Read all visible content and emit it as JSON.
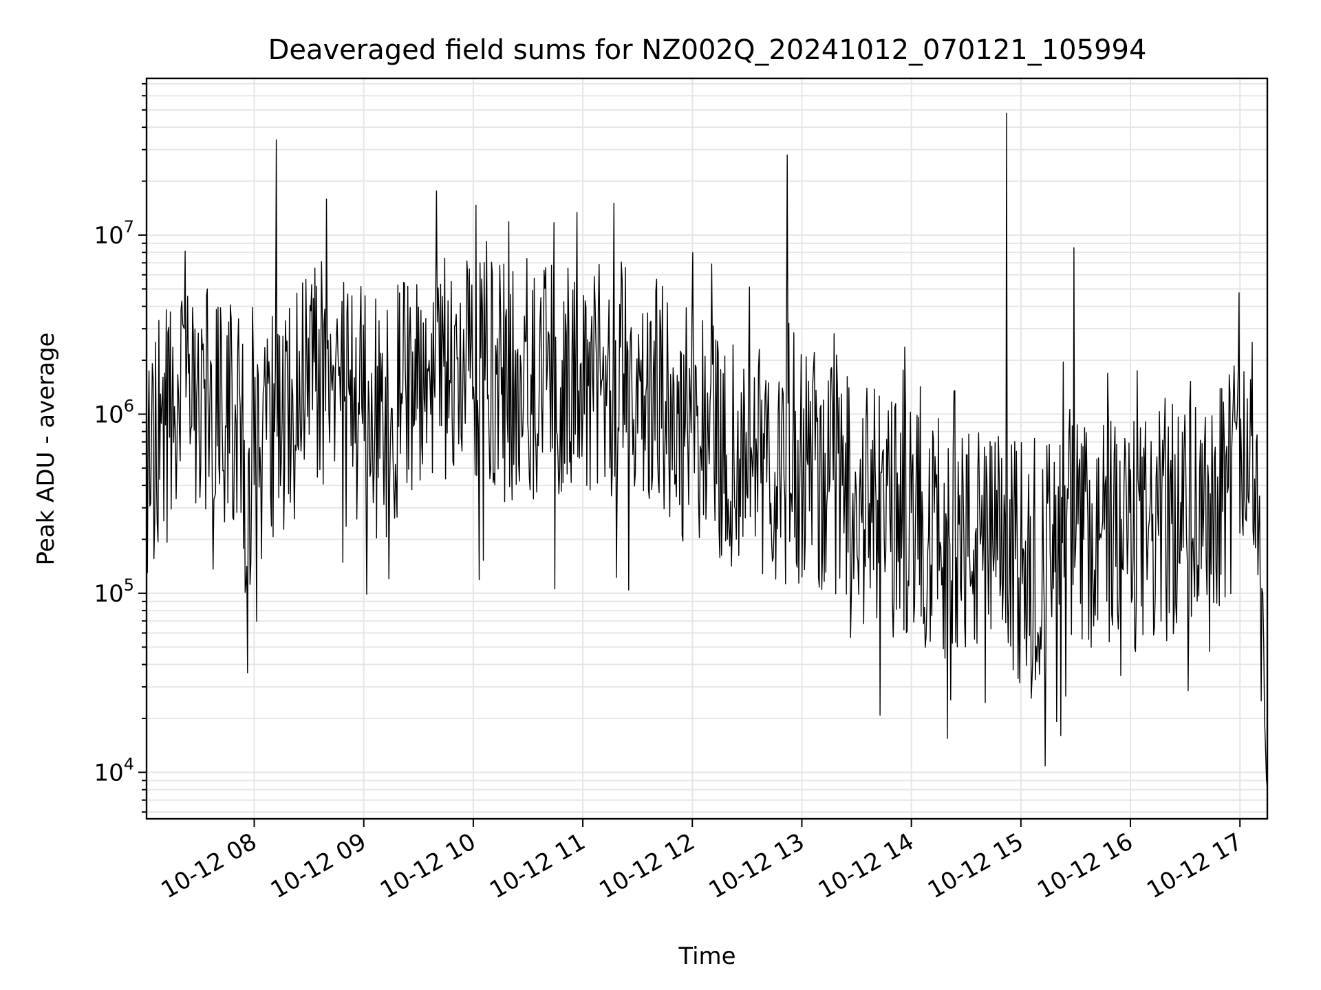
{
  "chart_data": {
    "type": "line",
    "title": "Deaveraged field sums for NZ002Q_20241012_070121_105994",
    "xlabel": "Time",
    "ylabel": "Peak ADU - average",
    "yscale": "log",
    "xlim": [
      "2024-10-12 07:01",
      "2024-10-12 17:15"
    ],
    "ylim": [
      5500,
      75000000
    ],
    "grid": true,
    "series_color": "#000000",
    "x_ticks": [
      {
        "value": "2024-10-12 08:00",
        "label": "10-12 08"
      },
      {
        "value": "2024-10-12 09:00",
        "label": "10-12 09"
      },
      {
        "value": "2024-10-12 10:00",
        "label": "10-12 10"
      },
      {
        "value": "2024-10-12 11:00",
        "label": "10-12 11"
      },
      {
        "value": "2024-10-12 12:00",
        "label": "10-12 12"
      },
      {
        "value": "2024-10-12 13:00",
        "label": "10-12 13"
      },
      {
        "value": "2024-10-12 14:00",
        "label": "10-12 14"
      },
      {
        "value": "2024-10-12 15:00",
        "label": "10-12 15"
      },
      {
        "value": "2024-10-12 16:00",
        "label": "10-12 16"
      },
      {
        "value": "2024-10-12 17:00",
        "label": "10-12 17"
      }
    ],
    "y_ticks": [
      {
        "value": 10000,
        "base": "10",
        "exp": "4"
      },
      {
        "value": 100000,
        "base": "10",
        "exp": "5"
      },
      {
        "value": 1000000,
        "base": "10",
        "exp": "6"
      },
      {
        "value": 10000000,
        "base": "10",
        "exp": "7"
      }
    ],
    "series": [
      {
        "x": [
          "2024-10-12 07:01",
          "2024-10-12 07:10",
          "2024-10-12 07:20",
          "2024-10-12 07:30",
          "2024-10-12 07:40",
          "2024-10-12 07:50",
          "2024-10-12 07:56",
          "2024-10-12 08:00",
          "2024-10-12 08:05",
          "2024-10-12 08:10",
          "2024-10-12 08:20",
          "2024-10-12 08:30",
          "2024-10-12 08:40",
          "2024-10-12 08:50",
          "2024-10-12 09:00",
          "2024-10-12 09:10",
          "2024-10-12 09:20",
          "2024-10-12 09:30",
          "2024-10-12 09:40",
          "2024-10-12 09:50",
          "2024-10-12 10:00",
          "2024-10-12 10:15",
          "2024-10-12 10:30",
          "2024-10-12 10:45",
          "2024-10-12 11:00",
          "2024-10-12 11:15",
          "2024-10-12 11:30",
          "2024-10-12 11:45",
          "2024-10-12 11:55",
          "2024-10-12 12:10",
          "2024-10-12 12:25",
          "2024-10-12 12:40",
          "2024-10-12 12:55",
          "2024-10-12 13:05",
          "2024-10-12 13:15",
          "2024-10-12 13:30",
          "2024-10-12 13:45",
          "2024-10-12 14:00",
          "2024-10-12 14:15",
          "2024-10-12 14:30",
          "2024-10-12 14:45",
          "2024-10-12 14:55",
          "2024-10-12 15:05",
          "2024-10-12 15:20",
          "2024-10-12 15:35",
          "2024-10-12 15:50",
          "2024-10-12 16:05",
          "2024-10-12 16:20",
          "2024-10-12 16:35",
          "2024-10-12 16:50",
          "2024-10-12 17:00",
          "2024-10-12 17:05",
          "2024-10-12 17:10",
          "2024-10-12 17:15"
        ],
        "y": [
          800000,
          1200000,
          1300000,
          1500000,
          1400000,
          1600000,
          200000,
          1000000,
          1000000,
          1100000,
          1300000,
          2000000,
          2500000,
          1500000,
          1500000,
          1200000,
          1600000,
          2400000,
          2900000,
          2600000,
          2200000,
          2000000,
          2200000,
          2000000,
          2500000,
          2200000,
          2000000,
          1900000,
          1200000,
          1000000,
          800000,
          700000,
          700000,
          700000,
          600000,
          450000,
          380000,
          330000,
          280000,
          260000,
          240000,
          220000,
          160000,
          250000,
          300000,
          280000,
          280000,
          320000,
          420000,
          550000,
          700000,
          1000000,
          500000,
          8000
        ],
        "peaks": [
          {
            "x": "2024-10-12 08:12",
            "y": 34000000
          },
          {
            "x": "2024-10-12 12:52",
            "y": 28000000
          },
          {
            "x": "2024-10-12 14:52",
            "y": 48000000
          },
          {
            "x": "2024-10-12 15:29",
            "y": 8500000
          }
        ]
      }
    ]
  }
}
